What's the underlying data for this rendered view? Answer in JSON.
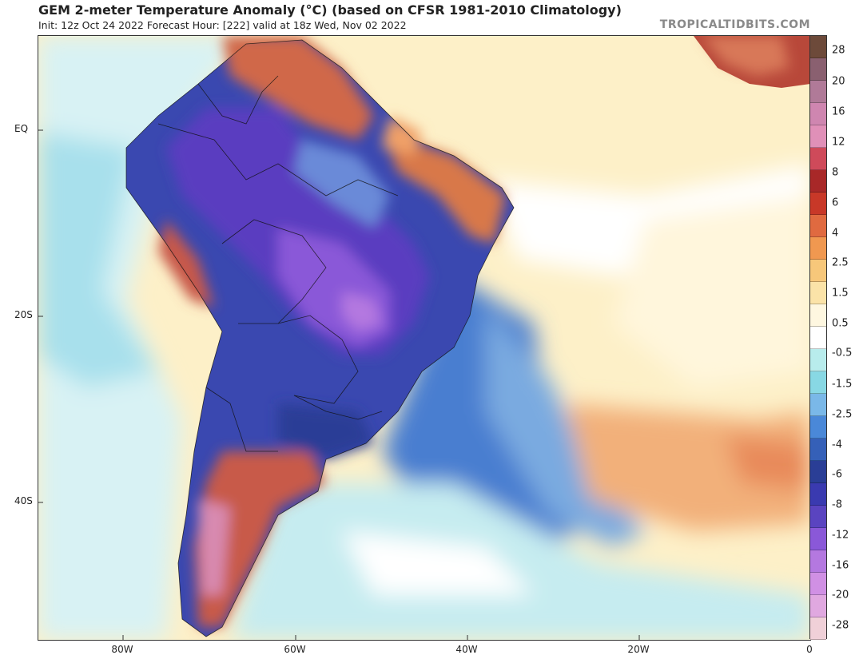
{
  "header": {
    "title": "GEM 2-meter Temperature Anomaly (°C) (based on CFSR 1981-2010 Climatology)",
    "subtitle": "Init: 12z Oct 24 2022   Forecast Hour: [222]   valid at 18z Wed, Nov 02 2022",
    "brand": "TROPICALTIDBITS.COM"
  },
  "axes": {
    "lat_labels": [
      "EQ",
      "20S",
      "40S"
    ],
    "lon_labels": [
      "80W",
      "60W",
      "40W",
      "20W",
      "0"
    ]
  },
  "colorbar": {
    "labels": [
      "28",
      "20",
      "16",
      "12",
      "8",
      "6",
      "4",
      "2.5",
      "1.5",
      "0.5",
      "-0.5",
      "-1.5",
      "-2.5",
      "-4",
      "-6",
      "-8",
      "-12",
      "-16",
      "-20",
      "-28"
    ],
    "colors": [
      "#6d4a3a",
      "#8a6070",
      "#b07a98",
      "#cf86b0",
      "#e090b8",
      "#cf4a5a",
      "#a82828",
      "#c83828",
      "#e06a40",
      "#f09850",
      "#f7c77a",
      "#fbe3a8",
      "#fef7e0",
      "#ffffff",
      "#b8ecec",
      "#88d8e4",
      "#7ab8e8",
      "#4a88d8",
      "#3560b8",
      "#2a3e96",
      "#3a3ab0",
      "#5a44c0",
      "#8a58d8",
      "#b478e0",
      "#d090e4",
      "#e0a8e0",
      "#f0d0d8"
    ]
  }
}
